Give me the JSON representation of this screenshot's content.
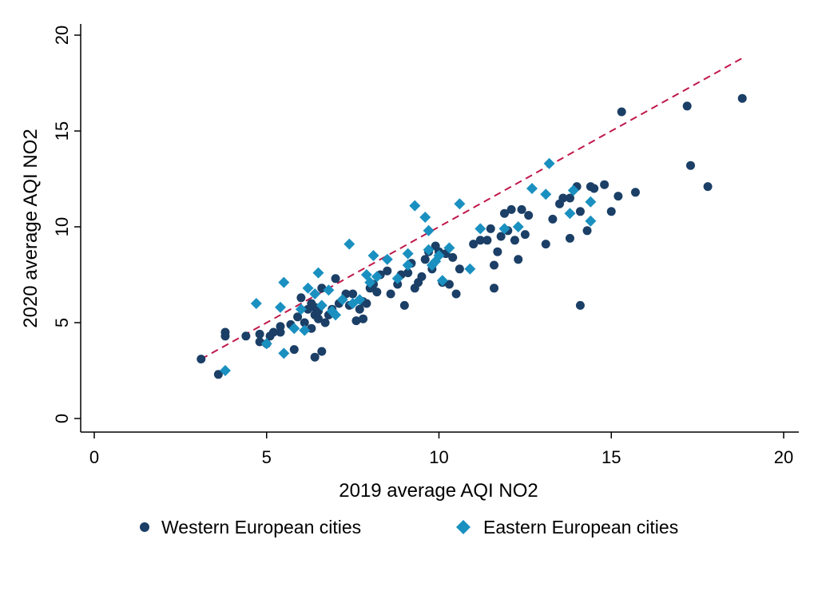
{
  "chart_data": {
    "type": "scatter",
    "title": "",
    "xlabel": "2019 average AQI NO2",
    "ylabel": "2020 average AQI NO2",
    "xlim": [
      0,
      20
    ],
    "ylim": [
      0,
      20
    ],
    "x_ticks": [
      0,
      5,
      10,
      15,
      20
    ],
    "y_ticks": [
      0,
      5,
      10,
      15,
      20
    ],
    "grid": false,
    "legend_position": "bottom",
    "colors": {
      "western": "#1b3f66",
      "eastern": "#1a90c0",
      "trend": "#c0184a",
      "axis": "#000000"
    },
    "reference_line": {
      "style": "dashed",
      "x": [
        3.1,
        18.8
      ],
      "y": [
        3.1,
        18.8
      ]
    },
    "series": [
      {
        "name": "Western European cities",
        "marker": "circle",
        "points": [
          [
            3.1,
            3.1
          ],
          [
            3.6,
            2.3
          ],
          [
            3.8,
            4.3
          ],
          [
            3.8,
            4.5
          ],
          [
            4.4,
            4.3
          ],
          [
            4.8,
            4.0
          ],
          [
            4.8,
            4.4
          ],
          [
            5.0,
            3.9
          ],
          [
            5.1,
            4.3
          ],
          [
            5.2,
            4.5
          ],
          [
            5.4,
            4.8
          ],
          [
            5.4,
            4.5
          ],
          [
            5.7,
            4.9
          ],
          [
            5.8,
            3.6
          ],
          [
            5.9,
            5.3
          ],
          [
            6.0,
            6.3
          ],
          [
            6.1,
            5.0
          ],
          [
            6.2,
            5.7
          ],
          [
            6.3,
            6.0
          ],
          [
            6.3,
            4.7
          ],
          [
            6.4,
            5.4
          ],
          [
            6.4,
            5.8
          ],
          [
            6.4,
            3.2
          ],
          [
            6.5,
            5.2
          ],
          [
            6.5,
            5.6
          ],
          [
            6.6,
            3.5
          ],
          [
            6.6,
            6.8
          ],
          [
            6.7,
            5.0
          ],
          [
            6.8,
            5.4
          ],
          [
            6.9,
            5.7
          ],
          [
            7.0,
            7.3
          ],
          [
            7.1,
            6.0
          ],
          [
            7.3,
            6.5
          ],
          [
            7.4,
            5.9
          ],
          [
            7.5,
            6.5
          ],
          [
            7.6,
            5.1
          ],
          [
            7.7,
            5.7
          ],
          [
            7.8,
            5.2
          ],
          [
            7.8,
            6.1
          ],
          [
            7.9,
            6.0
          ],
          [
            8.0,
            6.8
          ],
          [
            8.1,
            7.0
          ],
          [
            8.2,
            6.6
          ],
          [
            8.3,
            7.5
          ],
          [
            8.5,
            7.7
          ],
          [
            8.6,
            6.5
          ],
          [
            8.8,
            7.0
          ],
          [
            8.9,
            7.5
          ],
          [
            9.0,
            5.9
          ],
          [
            9.1,
            7.6
          ],
          [
            9.2,
            8.1
          ],
          [
            9.3,
            6.8
          ],
          [
            9.4,
            7.1
          ],
          [
            9.5,
            7.4
          ],
          [
            9.6,
            8.3
          ],
          [
            9.7,
            8.7
          ],
          [
            9.8,
            7.8
          ],
          [
            9.9,
            9.0
          ],
          [
            10.0,
            8.7
          ],
          [
            10.1,
            7.1
          ],
          [
            10.2,
            8.6
          ],
          [
            10.3,
            7.0
          ],
          [
            10.4,
            8.4
          ],
          [
            10.5,
            6.5
          ],
          [
            10.6,
            7.8
          ],
          [
            11.0,
            9.1
          ],
          [
            11.2,
            9.3
          ],
          [
            11.4,
            9.3
          ],
          [
            11.5,
            9.9
          ],
          [
            11.6,
            6.8
          ],
          [
            11.6,
            8.0
          ],
          [
            11.7,
            8.7
          ],
          [
            11.8,
            9.5
          ],
          [
            11.9,
            10.7
          ],
          [
            12.0,
            9.8
          ],
          [
            12.1,
            10.9
          ],
          [
            12.2,
            9.3
          ],
          [
            12.3,
            8.3
          ],
          [
            12.4,
            10.9
          ],
          [
            12.5,
            9.6
          ],
          [
            12.6,
            10.6
          ],
          [
            13.1,
            9.1
          ],
          [
            13.3,
            10.4
          ],
          [
            13.5,
            11.2
          ],
          [
            13.6,
            11.5
          ],
          [
            13.8,
            11.5
          ],
          [
            13.8,
            9.4
          ],
          [
            14.0,
            12.1
          ],
          [
            14.1,
            5.9
          ],
          [
            14.1,
            10.8
          ],
          [
            14.3,
            9.8
          ],
          [
            14.4,
            12.1
          ],
          [
            14.5,
            12.0
          ],
          [
            14.8,
            12.2
          ],
          [
            15.0,
            10.8
          ],
          [
            15.2,
            11.6
          ],
          [
            15.3,
            16.0
          ],
          [
            15.7,
            11.8
          ],
          [
            17.2,
            16.3
          ],
          [
            17.3,
            13.2
          ],
          [
            17.8,
            12.1
          ],
          [
            18.8,
            16.7
          ]
        ]
      },
      {
        "name": "Eastern European cities",
        "marker": "diamond",
        "points": [
          [
            3.8,
            2.5
          ],
          [
            4.7,
            6.0
          ],
          [
            5.0,
            3.9
          ],
          [
            5.4,
            5.8
          ],
          [
            5.5,
            7.1
          ],
          [
            5.5,
            3.4
          ],
          [
            5.8,
            4.7
          ],
          [
            6.0,
            5.7
          ],
          [
            6.1,
            4.6
          ],
          [
            6.2,
            6.8
          ],
          [
            6.4,
            6.5
          ],
          [
            6.5,
            7.6
          ],
          [
            6.6,
            5.9
          ],
          [
            6.8,
            6.7
          ],
          [
            6.9,
            5.6
          ],
          [
            7.0,
            5.4
          ],
          [
            7.2,
            6.2
          ],
          [
            7.4,
            9.1
          ],
          [
            7.5,
            6.0
          ],
          [
            7.7,
            6.2
          ],
          [
            7.9,
            7.5
          ],
          [
            8.0,
            7.1
          ],
          [
            8.1,
            8.5
          ],
          [
            8.2,
            7.4
          ],
          [
            8.5,
            8.3
          ],
          [
            8.8,
            7.3
          ],
          [
            9.1,
            8.0
          ],
          [
            9.1,
            8.6
          ],
          [
            9.3,
            11.1
          ],
          [
            9.6,
            10.5
          ],
          [
            9.7,
            9.8
          ],
          [
            9.7,
            8.8
          ],
          [
            9.8,
            8.0
          ],
          [
            9.9,
            8.2
          ],
          [
            10.0,
            8.5
          ],
          [
            10.1,
            7.2
          ],
          [
            10.3,
            8.9
          ],
          [
            10.6,
            11.2
          ],
          [
            10.9,
            7.8
          ],
          [
            11.2,
            9.9
          ],
          [
            11.9,
            9.9
          ],
          [
            12.3,
            10.0
          ],
          [
            12.7,
            12.0
          ],
          [
            13.1,
            11.7
          ],
          [
            13.2,
            13.3
          ],
          [
            13.8,
            10.7
          ],
          [
            13.9,
            11.9
          ],
          [
            14.4,
            11.3
          ],
          [
            14.4,
            10.3
          ]
        ]
      }
    ]
  }
}
